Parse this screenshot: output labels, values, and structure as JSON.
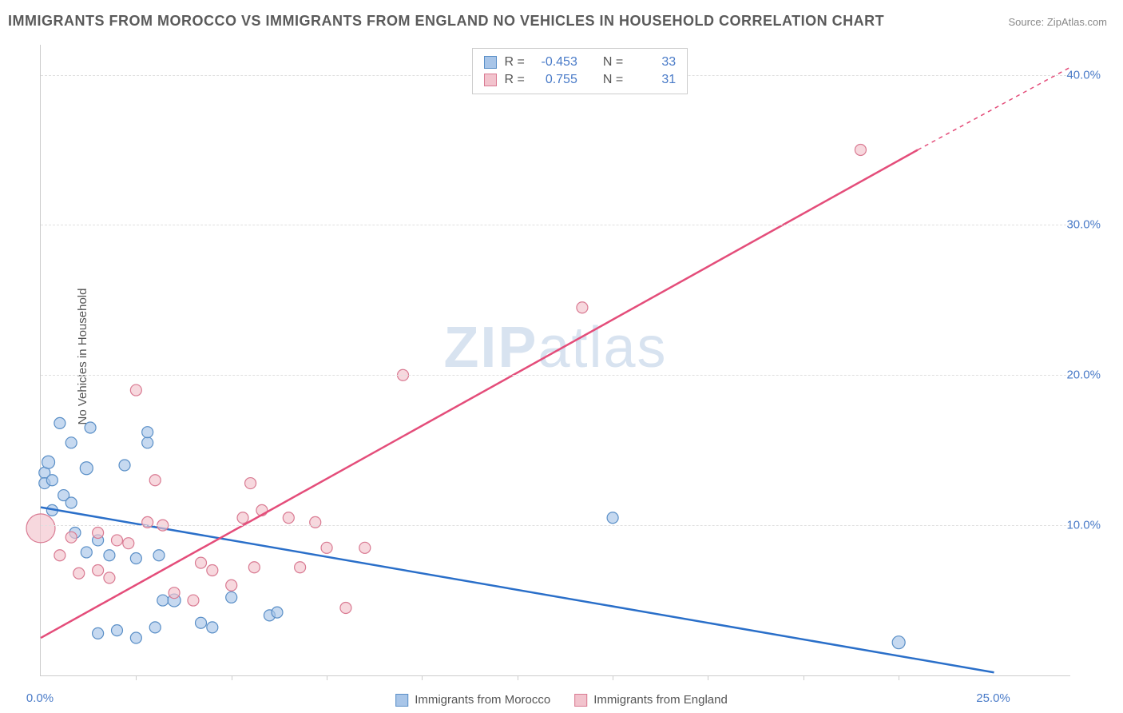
{
  "title": "IMMIGRANTS FROM MOROCCO VS IMMIGRANTS FROM ENGLAND NO VEHICLES IN HOUSEHOLD CORRELATION CHART",
  "source": "Source: ZipAtlas.com",
  "y_axis_label": "No Vehicles in Household",
  "watermark_a": "ZIP",
  "watermark_b": "atlas",
  "chart": {
    "type": "scatter",
    "xlim": [
      0,
      27
    ],
    "ylim": [
      0,
      42
    ],
    "x_ticks_minor": [
      2.5,
      5,
      7.5,
      10,
      12.5,
      15,
      17.5,
      20,
      22.5
    ],
    "x_ticks_labeled": [
      0,
      25
    ],
    "y_ticks": [
      10,
      20,
      30,
      40
    ],
    "y_tick_labels": [
      "10.0%",
      "20.0%",
      "30.0%",
      "40.0%"
    ],
    "x_tick_labels": [
      "0.0%",
      "25.0%"
    ],
    "grid_color": "#e0e0e0",
    "background_color": "#ffffff",
    "series": [
      {
        "name": "Immigrants from Morocco",
        "fill": "#a8c5e8",
        "stroke": "#5a8fc7",
        "line_color": "#2a6fc9",
        "R": "-0.453",
        "N": "33",
        "regression": {
          "x1": 0,
          "y1": 11.2,
          "x2": 25,
          "y2": 0.2
        },
        "points": [
          {
            "x": 0.1,
            "y": 13.5,
            "r": 7
          },
          {
            "x": 0.1,
            "y": 12.8,
            "r": 7
          },
          {
            "x": 0.2,
            "y": 14.2,
            "r": 8
          },
          {
            "x": 0.3,
            "y": 11.0,
            "r": 7
          },
          {
            "x": 0.3,
            "y": 13.0,
            "r": 7
          },
          {
            "x": 0.5,
            "y": 16.8,
            "r": 7
          },
          {
            "x": 0.6,
            "y": 12.0,
            "r": 7
          },
          {
            "x": 0.8,
            "y": 15.5,
            "r": 7
          },
          {
            "x": 0.8,
            "y": 11.5,
            "r": 7
          },
          {
            "x": 0.9,
            "y": 9.5,
            "r": 7
          },
          {
            "x": 1.2,
            "y": 13.8,
            "r": 8
          },
          {
            "x": 1.2,
            "y": 8.2,
            "r": 7
          },
          {
            "x": 1.3,
            "y": 16.5,
            "r": 7
          },
          {
            "x": 1.5,
            "y": 9.0,
            "r": 7
          },
          {
            "x": 1.5,
            "y": 2.8,
            "r": 7
          },
          {
            "x": 1.8,
            "y": 8.0,
            "r": 7
          },
          {
            "x": 2.0,
            "y": 3.0,
            "r": 7
          },
          {
            "x": 2.2,
            "y": 14.0,
            "r": 7
          },
          {
            "x": 2.5,
            "y": 7.8,
            "r": 7
          },
          {
            "x": 2.5,
            "y": 2.5,
            "r": 7
          },
          {
            "x": 2.8,
            "y": 15.5,
            "r": 7
          },
          {
            "x": 2.8,
            "y": 16.2,
            "r": 7
          },
          {
            "x": 3.0,
            "y": 3.2,
            "r": 7
          },
          {
            "x": 3.1,
            "y": 8.0,
            "r": 7
          },
          {
            "x": 3.2,
            "y": 5.0,
            "r": 7
          },
          {
            "x": 3.5,
            "y": 5.0,
            "r": 8
          },
          {
            "x": 4.2,
            "y": 3.5,
            "r": 7
          },
          {
            "x": 4.5,
            "y": 3.2,
            "r": 7
          },
          {
            "x": 5.0,
            "y": 5.2,
            "r": 7
          },
          {
            "x": 6.0,
            "y": 4.0,
            "r": 7
          },
          {
            "x": 6.2,
            "y": 4.2,
            "r": 7
          },
          {
            "x": 15.0,
            "y": 10.5,
            "r": 7
          },
          {
            "x": 22.5,
            "y": 2.2,
            "r": 8
          }
        ]
      },
      {
        "name": "Immigrants from England",
        "fill": "#f2c3cd",
        "stroke": "#d97a92",
        "line_color": "#e44d7a",
        "R": "0.755",
        "N": "31",
        "regression": {
          "x1": 0,
          "y1": 2.5,
          "x2": 23,
          "y2": 35
        },
        "regression_dash": {
          "x1": 23,
          "y1": 35,
          "x2": 27,
          "y2": 40.5
        },
        "points": [
          {
            "x": 0.0,
            "y": 9.8,
            "r": 18
          },
          {
            "x": 0.5,
            "y": 8.0,
            "r": 7
          },
          {
            "x": 0.8,
            "y": 9.2,
            "r": 7
          },
          {
            "x": 1.0,
            "y": 6.8,
            "r": 7
          },
          {
            "x": 1.5,
            "y": 9.5,
            "r": 7
          },
          {
            "x": 1.5,
            "y": 7.0,
            "r": 7
          },
          {
            "x": 1.8,
            "y": 6.5,
            "r": 7
          },
          {
            "x": 2.0,
            "y": 9.0,
            "r": 7
          },
          {
            "x": 2.3,
            "y": 8.8,
            "r": 7
          },
          {
            "x": 2.5,
            "y": 19.0,
            "r": 7
          },
          {
            "x": 2.8,
            "y": 10.2,
            "r": 7
          },
          {
            "x": 3.0,
            "y": 13.0,
            "r": 7
          },
          {
            "x": 3.2,
            "y": 10.0,
            "r": 7
          },
          {
            "x": 3.5,
            "y": 5.5,
            "r": 7
          },
          {
            "x": 4.0,
            "y": 5.0,
            "r": 7
          },
          {
            "x": 4.2,
            "y": 7.5,
            "r": 7
          },
          {
            "x": 4.5,
            "y": 7.0,
            "r": 7
          },
          {
            "x": 5.0,
            "y": 6.0,
            "r": 7
          },
          {
            "x": 5.3,
            "y": 10.5,
            "r": 7
          },
          {
            "x": 5.5,
            "y": 12.8,
            "r": 7
          },
          {
            "x": 5.6,
            "y": 7.2,
            "r": 7
          },
          {
            "x": 5.8,
            "y": 11.0,
            "r": 7
          },
          {
            "x": 6.5,
            "y": 10.5,
            "r": 7
          },
          {
            "x": 6.8,
            "y": 7.2,
            "r": 7
          },
          {
            "x": 7.2,
            "y": 10.2,
            "r": 7
          },
          {
            "x": 7.5,
            "y": 8.5,
            "r": 7
          },
          {
            "x": 8.0,
            "y": 4.5,
            "r": 7
          },
          {
            "x": 8.5,
            "y": 8.5,
            "r": 7
          },
          {
            "x": 9.5,
            "y": 20.0,
            "r": 7
          },
          {
            "x": 14.2,
            "y": 24.5,
            "r": 7
          },
          {
            "x": 21.5,
            "y": 35.0,
            "r": 7
          }
        ]
      }
    ]
  },
  "stats_labels": {
    "R": "R =",
    "N": "N ="
  },
  "legend_items": [
    {
      "label": "Immigrants from Morocco",
      "fill": "#a8c5e8",
      "stroke": "#5a8fc7"
    },
    {
      "label": "Immigrants from England",
      "fill": "#f2c3cd",
      "stroke": "#d97a92"
    }
  ]
}
